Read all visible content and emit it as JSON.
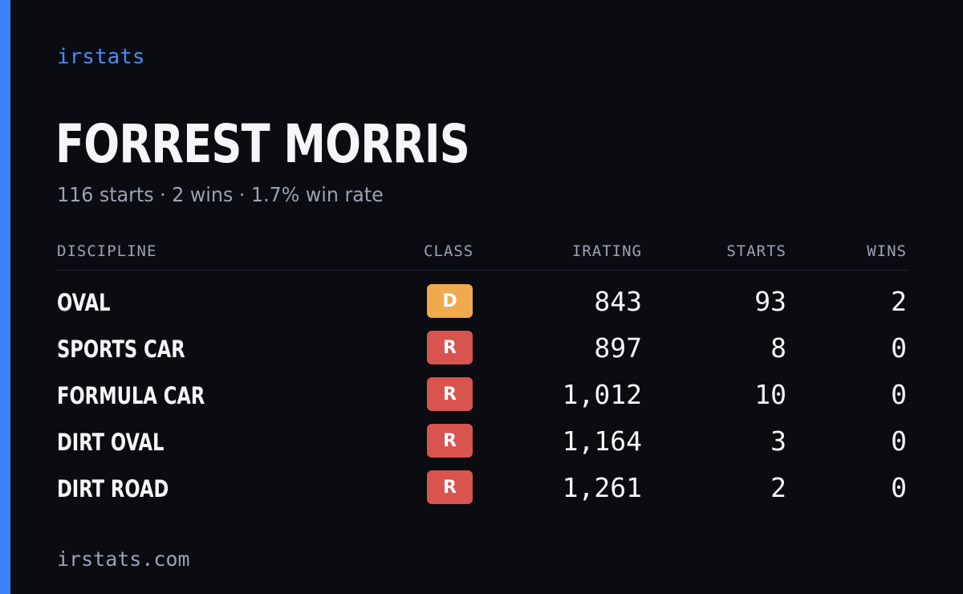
{
  "brand": "irstats",
  "driver": {
    "name": "FORREST MORRIS",
    "summary": "116 starts · 2 wins · 1.7% win rate"
  },
  "table": {
    "headers": {
      "discipline": "DISCIPLINE",
      "class": "CLASS",
      "irating": "IRATING",
      "starts": "STARTS",
      "wins": "WINS"
    },
    "rows": [
      {
        "discipline": "OVAL",
        "class": "D",
        "class_color": "#eeaa4c",
        "irating": "843",
        "starts": "93",
        "wins": "2"
      },
      {
        "discipline": "SPORTS CAR",
        "class": "R",
        "class_color": "#d9534f",
        "irating": "897",
        "starts": "8",
        "wins": "0"
      },
      {
        "discipline": "FORMULA CAR",
        "class": "R",
        "class_color": "#d9534f",
        "irating": "1,012",
        "starts": "10",
        "wins": "0"
      },
      {
        "discipline": "DIRT OVAL",
        "class": "R",
        "class_color": "#d9534f",
        "irating": "1,164",
        "starts": "3",
        "wins": "0"
      },
      {
        "discipline": "DIRT ROAD",
        "class": "R",
        "class_color": "#d9534f",
        "irating": "1,261",
        "starts": "2",
        "wins": "0"
      }
    ]
  },
  "footer": "irstats.com",
  "colors": {
    "accent": "#3b82f6",
    "background": "#0a0c12"
  }
}
